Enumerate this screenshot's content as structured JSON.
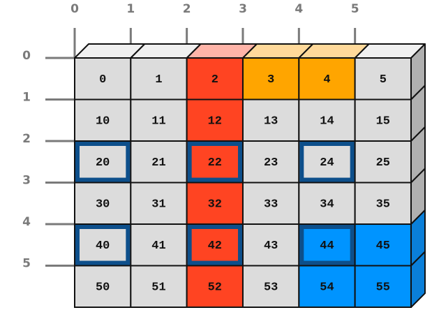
{
  "column_labels": [
    "0",
    "1",
    "2",
    "3",
    "4",
    "5"
  ],
  "row_labels": [
    "0",
    "1",
    "2",
    "3",
    "4",
    "5"
  ],
  "rows": [
    [
      "0",
      "1",
      "2",
      "3",
      "4",
      "5"
    ],
    [
      "10",
      "11",
      "12",
      "13",
      "14",
      "15"
    ],
    [
      "20",
      "21",
      "22",
      "23",
      "24",
      "25"
    ],
    [
      "30",
      "31",
      "32",
      "33",
      "34",
      "35"
    ],
    [
      "40",
      "41",
      "42",
      "43",
      "44",
      "45"
    ],
    [
      "50",
      "51",
      "52",
      "53",
      "54",
      "55"
    ]
  ]
}
